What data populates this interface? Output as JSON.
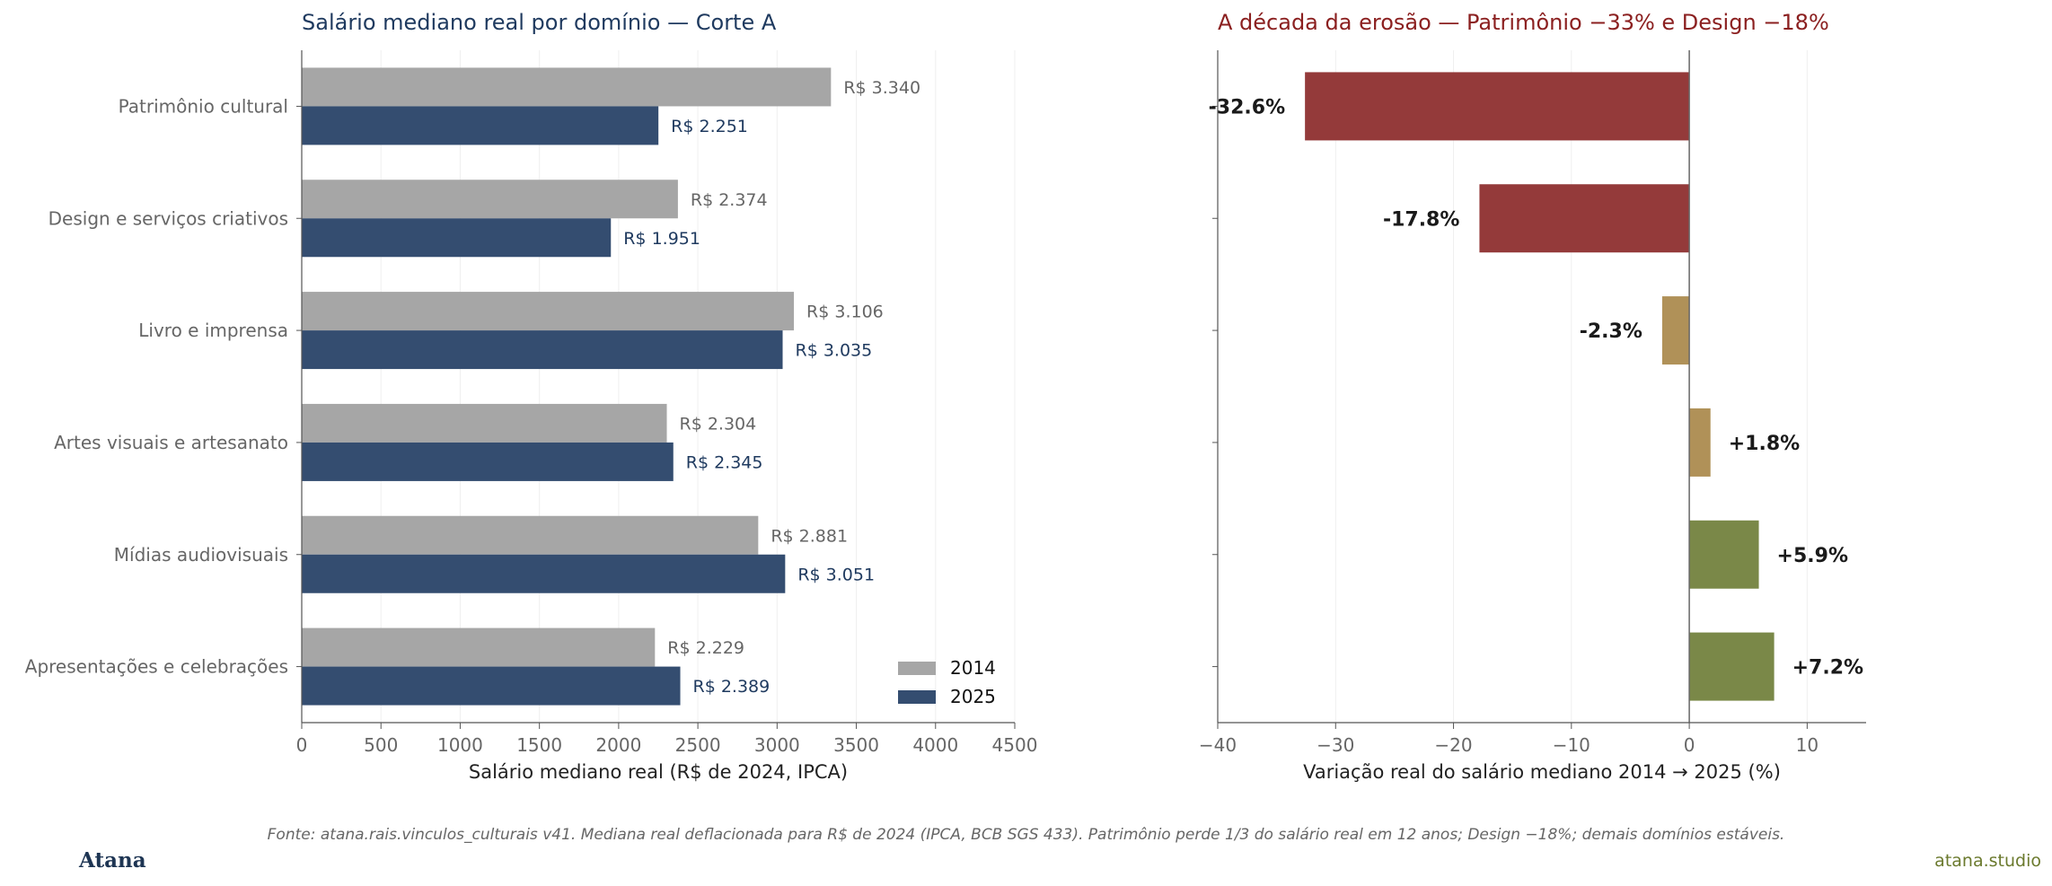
{
  "chart_data": [
    {
      "type": "bar",
      "orientation": "horizontal",
      "title": "Salário mediano real por domínio — Corte A",
      "xlabel": "Salário mediano real (R$ de 2024, IPCA)",
      "ylabel": "",
      "xlim": [
        0,
        4500
      ],
      "xticks": [
        0,
        500,
        1000,
        1500,
        2000,
        2500,
        3000,
        3500,
        4000,
        4500
      ],
      "xtick_labels": [
        "0",
        "500",
        "1000",
        "1500",
        "2000",
        "2500",
        "3000",
        "3500",
        "4000",
        "4500"
      ],
      "categories": [
        "Patrimônio cultural",
        "Design e serviços criativos",
        "Livro e imprensa",
        "Artes visuais e artesanato",
        "Mídias audiovisuais",
        "Apresentações e celebrações"
      ],
      "series": [
        {
          "name": "2014",
          "color": "#a6a6a6",
          "label_color": "#666666",
          "values": [
            3340,
            2374,
            3106,
            2304,
            2881,
            2229
          ],
          "labels": [
            "R$ 3.340",
            "R$ 2.374",
            "R$ 3.106",
            "R$ 2.304",
            "R$ 2.881",
            "R$ 2.229"
          ]
        },
        {
          "name": "2025",
          "color": "#344d70",
          "label_color": "#1f3a5f",
          "values": [
            2251,
            1951,
            3035,
            2345,
            3051,
            2389
          ],
          "labels": [
            "R$ 2.251",
            "R$ 1.951",
            "R$ 3.035",
            "R$ 2.345",
            "R$ 3.051",
            "R$ 2.389"
          ]
        }
      ],
      "legend_position": "lower-right",
      "grid": true,
      "title_color": "#1f3a5f"
    },
    {
      "type": "bar",
      "orientation": "horizontal",
      "title": "A década da erosão — Patrimônio −33% e Design −18%",
      "xlabel": "Variação real do salário mediano 2014 → 2025 (%)",
      "ylabel": "",
      "xlim": [
        -40,
        15
      ],
      "xticks": [
        -40,
        -30,
        -20,
        -10,
        0,
        10
      ],
      "xtick_labels": [
        "−40",
        "−30",
        "−20",
        "−10",
        "0",
        "10"
      ],
      "values": [
        -32.6,
        -17.8,
        -2.3,
        1.8,
        5.9,
        7.2
      ],
      "labels": [
        "-32.6%",
        "-17.8%",
        "-2.3%",
        "+1.8%",
        "+5.9%",
        "+7.2%"
      ],
      "colors": [
        "#943a3a",
        "#943a3a",
        "#b09158",
        "#b09158",
        "#7a8848",
        "#7a8848"
      ],
      "grid": true,
      "title_color": "#8b2020"
    }
  ],
  "footer": {
    "note": "Fonte: atana.rais.vinculos_culturais v41. Mediana real deflacionada para R$ de 2024 (IPCA, BCB SGS 433). Patrimônio perde 1/3 do salário real em 12 anos; Design −18%; demais domínios estáveis.",
    "brand": "Atana",
    "site": "atana.studio"
  }
}
